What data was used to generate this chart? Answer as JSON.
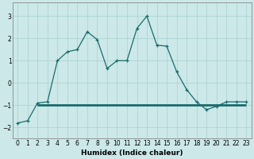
{
  "xlabel": "Humidex (Indice chaleur)",
  "background_color": "#cce8e8",
  "line_color": "#1a6b6b",
  "xlim": [
    -0.5,
    23.5
  ],
  "ylim": [
    -2.5,
    3.6
  ],
  "yticks": [
    -2,
    -1,
    0,
    1,
    2,
    3
  ],
  "xticks": [
    0,
    1,
    2,
    3,
    4,
    5,
    6,
    7,
    8,
    9,
    10,
    11,
    12,
    13,
    14,
    15,
    16,
    17,
    18,
    19,
    20,
    21,
    22,
    23
  ],
  "curve1_x": [
    0,
    1,
    2,
    3,
    4,
    5,
    6,
    7,
    8,
    9,
    10,
    11,
    12,
    13,
    14,
    15,
    16,
    17,
    18,
    19,
    20,
    21,
    22,
    23
  ],
  "curve1_y": [
    -1.8,
    -1.7,
    -0.9,
    -0.85,
    1.0,
    1.4,
    1.5,
    2.3,
    1.95,
    0.65,
    1.0,
    1.0,
    2.45,
    3.0,
    1.7,
    1.65,
    0.5,
    -0.3,
    -0.85,
    -1.2,
    -1.05,
    -0.85,
    -0.85,
    -0.85
  ],
  "curve2_x": [
    2,
    23
  ],
  "curve2_y": [
    -1.0,
    -1.0
  ],
  "grid_color": "#aed4d4",
  "grid_minor_color": "#c0dede",
  "marker": "+"
}
